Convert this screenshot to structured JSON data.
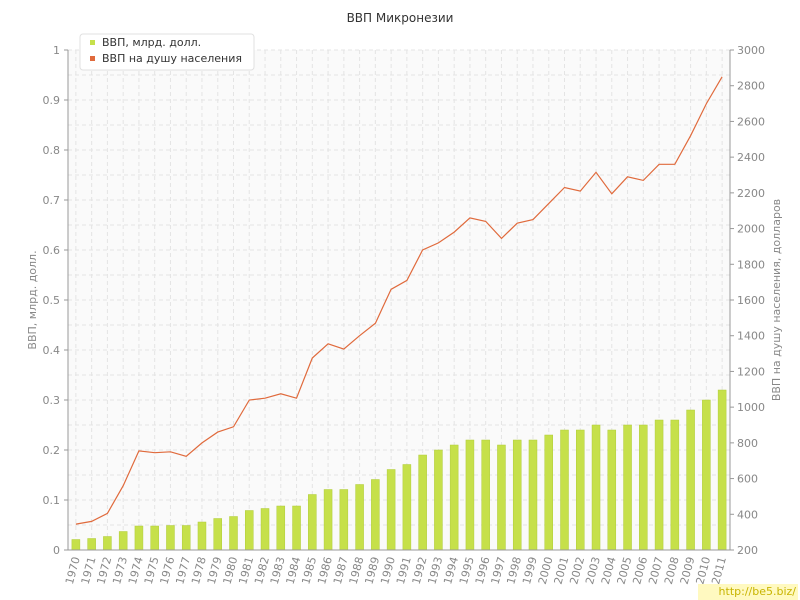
{
  "chart_data": {
    "type": "bar+line",
    "title": "ВВП Микронезии",
    "years": [
      1970,
      1971,
      1972,
      1973,
      1974,
      1975,
      1976,
      1977,
      1978,
      1979,
      1980,
      1981,
      1982,
      1983,
      1984,
      1985,
      1986,
      1987,
      1988,
      1989,
      1990,
      1991,
      1992,
      1993,
      1994,
      1995,
      1996,
      1997,
      1998,
      1999,
      2000,
      2001,
      2002,
      2003,
      2004,
      2005,
      2006,
      2007,
      2008,
      2009,
      2010,
      2011
    ],
    "series": [
      {
        "name": "ВВП, млрд. долл.",
        "type": "bar",
        "axis": "left",
        "color": "#c6e04a",
        "values": [
          0.021,
          0.023,
          0.027,
          0.037,
          0.048,
          0.048,
          0.049,
          0.049,
          0.056,
          0.063,
          0.067,
          0.079,
          0.083,
          0.088,
          0.088,
          0.111,
          0.121,
          0.121,
          0.131,
          0.141,
          0.161,
          0.171,
          0.19,
          0.2,
          0.21,
          0.22,
          0.22,
          0.21,
          0.22,
          0.22,
          0.23,
          0.24,
          0.24,
          0.25,
          0.24,
          0.25,
          0.25,
          0.26,
          0.26,
          0.28,
          0.3,
          0.32
        ]
      },
      {
        "name": "ВВП на душу населения",
        "type": "line",
        "axis": "right",
        "color": "#e06a3c",
        "values": [
          345,
          360,
          405,
          560,
          755,
          745,
          750,
          725,
          800,
          860,
          890,
          1040,
          1050,
          1075,
          1050,
          1275,
          1355,
          1325,
          1400,
          1470,
          1660,
          1710,
          1880,
          1920,
          1980,
          2060,
          2040,
          1945,
          2030,
          2050,
          2140,
          2230,
          2210,
          2315,
          2195,
          2290,
          2270,
          2360,
          2360,
          2520,
          2700,
          2850
        ]
      }
    ],
    "y_left": {
      "label": "ВВП, млрд. долл.",
      "min": 0,
      "max": 1,
      "ticks": [
        "0",
        "0.1",
        "0.2",
        "0.3",
        "0.4",
        "0.5",
        "0.6",
        "0.7",
        "0.8",
        "0.9",
        "1"
      ]
    },
    "y_right": {
      "label": "ВВП на душу населения, долларов",
      "min": 200,
      "max": 3000,
      "ticks": [
        "200",
        "400",
        "600",
        "800",
        "1000",
        "1200",
        "1400",
        "1600",
        "1800",
        "2000",
        "2200",
        "2400",
        "2600",
        "2800",
        "3000"
      ]
    },
    "grid": true,
    "legend": "top-left"
  },
  "watermark": "http://be5.biz/",
  "colors": {
    "grid": "#e4e4e4",
    "axis": "#999999",
    "text": "#888888",
    "bar_edge": "#b0cc3a"
  }
}
